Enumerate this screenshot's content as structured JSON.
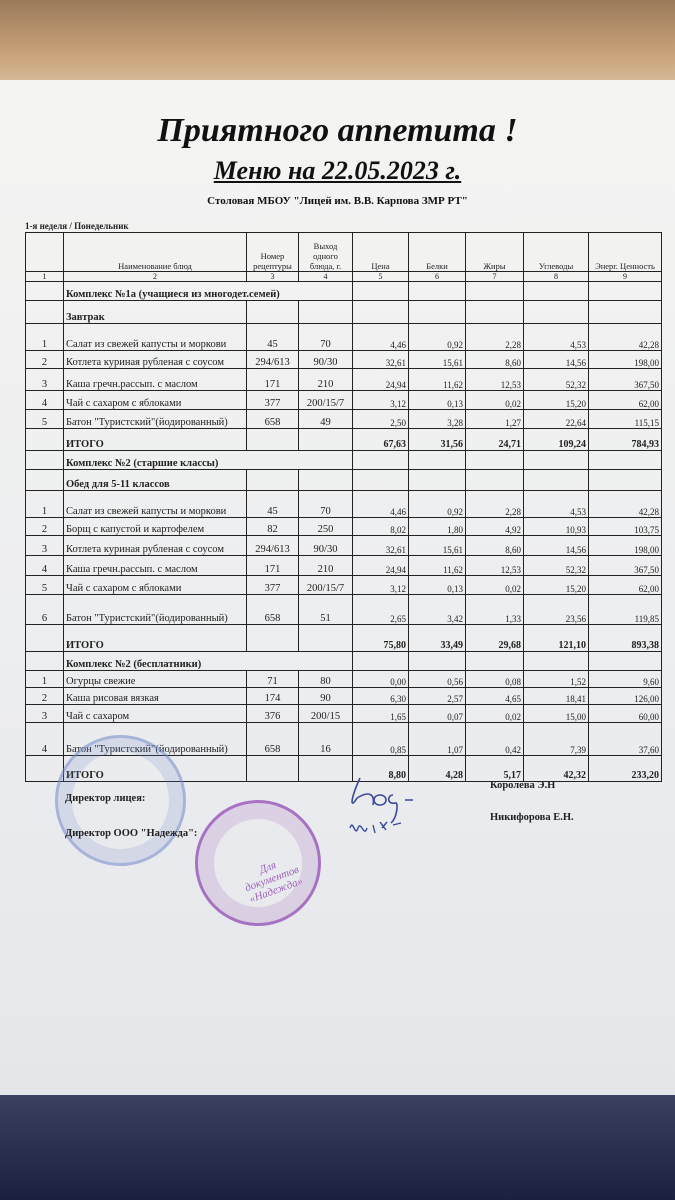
{
  "title": "Приятного аппетита !",
  "subtitle": "Меню на 22.05.2023 г.",
  "organization": "Столовая МБОУ \"Лицей им. В.В. Карпова ЗМР РТ\"",
  "week_day": "1-я неделя / Понедельник",
  "headers": [
    "",
    "Наименование блюд",
    "Номер рецептуры",
    "Выход одного блюда, г.",
    "Цена",
    "Белки",
    "Жиры",
    "Углеводы",
    "Энерг. Ценность"
  ],
  "column_numbers": [
    "1",
    "2",
    "3",
    "4",
    "5",
    "6",
    "7",
    "8",
    "9"
  ],
  "sections": [
    {
      "title": "Комплекс №1а (учащиеся из многодет.семей)",
      "subtitle": "Завтрак",
      "rows": [
        [
          "1",
          "Салат из свежей капусты и моркови",
          "45",
          "70",
          "4,46",
          "0,92",
          "2,28",
          "4,53",
          "42,28"
        ],
        [
          "2",
          "Котлета куриная рубленая с соусом",
          "294/613",
          "90/30",
          "32,61",
          "15,61",
          "8,60",
          "14,56",
          "198,00"
        ],
        [
          "3",
          "Каша гречн.рассып. с маслом",
          "171",
          "210",
          "24,94",
          "11,62",
          "12,53",
          "52,32",
          "367,50"
        ],
        [
          "4",
          "Чай с сахаром с яблоками",
          "377",
          "200/15/7",
          "3,12",
          "0,13",
          "0,02",
          "15,20",
          "62,00"
        ],
        [
          "5",
          "Батон \"Туристский\"(йодированный)",
          "658",
          "49",
          "2,50",
          "3,28",
          "1,27",
          "22,64",
          "115,15"
        ]
      ],
      "total": {
        "label": "ИТОГО",
        "values": [
          "67,63",
          "31,56",
          "24,71",
          "109,24",
          "784,93"
        ]
      }
    },
    {
      "title": "Комплекс  №2  (старшие классы)",
      "subtitle": "Обед для 5-11 классов",
      "rows": [
        [
          "1",
          "Салат из свежей капусты и моркови",
          "45",
          "70",
          "4,46",
          "0,92",
          "2,28",
          "4,53",
          "42,28"
        ],
        [
          "2",
          "Борщ с капустой и картофелем",
          "82",
          "250",
          "8,02",
          "1,80",
          "4,92",
          "10,93",
          "103,75"
        ],
        [
          "3",
          "Котлета куриная рубленая с соусом",
          "294/613",
          "90/30",
          "32,61",
          "15,61",
          "8,60",
          "14,56",
          "198,00"
        ],
        [
          "4",
          "Каша гречн.рассып. с маслом",
          "171",
          "210",
          "24,94",
          "11,62",
          "12,53",
          "52,32",
          "367,50"
        ],
        [
          "5",
          "Чай с сахаром с яблоками",
          "377",
          "200/15/7",
          "3,12",
          "0,13",
          "0,02",
          "15,20",
          "62,00"
        ],
        [
          "6",
          "Батон \"Туристский\"(йодированный)",
          "658",
          "51",
          "2,65",
          "3,42",
          "1,33",
          "23,56",
          "119,85"
        ]
      ],
      "total": {
        "label": "ИТОГО",
        "values": [
          "75,80",
          "33,49",
          "29,68",
          "121,10",
          "893,38"
        ]
      }
    },
    {
      "title": "Комплекс №2 (бесплатники)",
      "subtitle": "",
      "rows": [
        [
          "1",
          "Огурцы свежие",
          "71",
          "80",
          "0,00",
          "0,56",
          "0,08",
          "1,52",
          "9,60"
        ],
        [
          "2",
          "Каша рисовая вязкая",
          "174",
          "90",
          "6,30",
          "2,57",
          "4,65",
          "18,41",
          "126,00"
        ],
        [
          "3",
          "Чай с сахаром",
          "376",
          "200/15",
          "1,65",
          "0,07",
          "0,02",
          "15,00",
          "60,00"
        ],
        [
          "4",
          "Батон \"Туристский\"(йодированный)",
          "658",
          "16",
          "0,85",
          "1,07",
          "0,42",
          "7,39",
          "37,60"
        ]
      ],
      "total": {
        "label": "ИТОГО",
        "values": [
          "8,80",
          "4,28",
          "5,17",
          "42,32",
          "233,20"
        ]
      }
    }
  ],
  "signatures": {
    "director_lyceum": "Директор  лицея:",
    "director_company": "Директор ООО \"Надежда\":",
    "name1": "Королева Э.Н",
    "name2": "Никифорова Е.Н.",
    "stamp_text": "Для документов «Надежда»"
  },
  "colors": {
    "stamp_blue": "#6f86c8",
    "stamp_purple": "#8a3fb0",
    "paper": "#f0f0ee"
  }
}
